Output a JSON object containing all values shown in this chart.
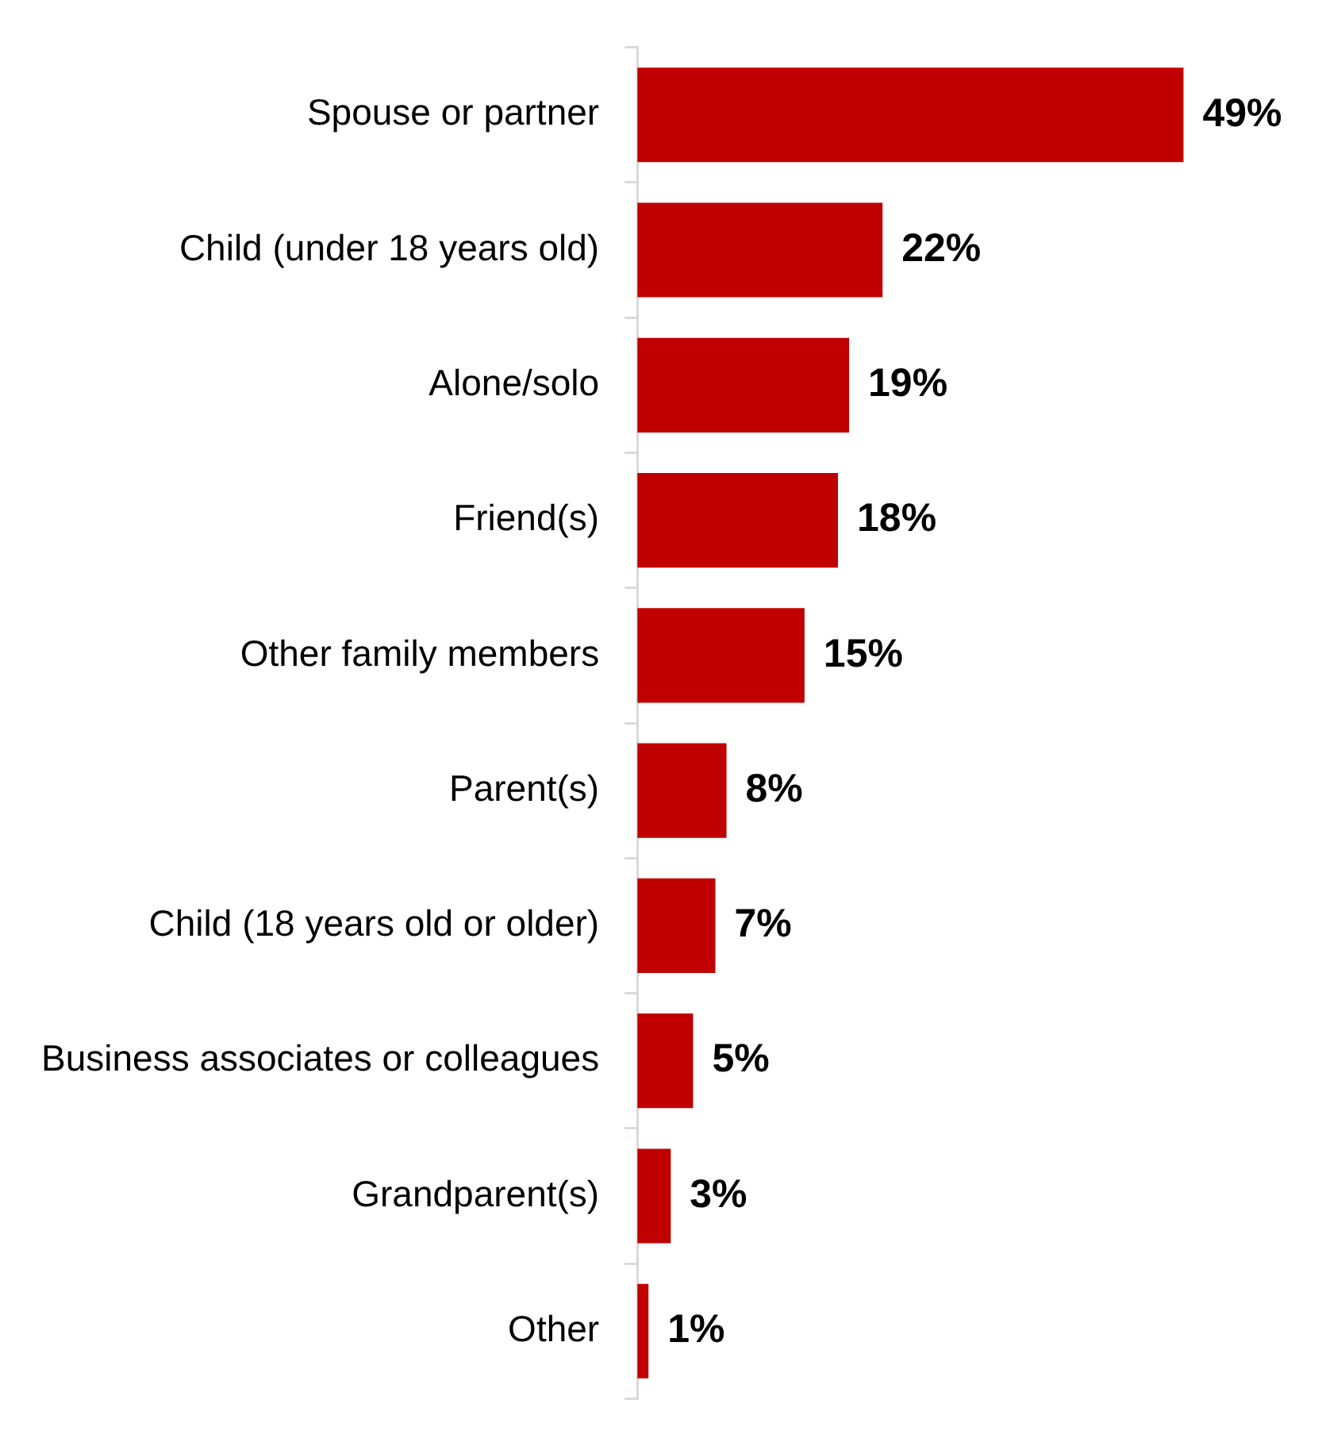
{
  "chart_data": {
    "type": "bar",
    "orientation": "horizontal",
    "categories": [
      "Spouse or partner",
      "Child (under 18 years old)",
      "Alone/solo",
      "Friend(s)",
      "Other family members",
      "Parent(s)",
      "Child (18 years old or older)",
      "Business associates or colleagues",
      "Grandparent(s)",
      "Other"
    ],
    "values": [
      49,
      22,
      19,
      18,
      15,
      8,
      7,
      5,
      3,
      1
    ],
    "value_labels": [
      "49%",
      "22%",
      "19%",
      "18%",
      "15%",
      "8%",
      "7%",
      "5%",
      "3%",
      "1%"
    ],
    "color": "#c00000",
    "legend": false
  }
}
